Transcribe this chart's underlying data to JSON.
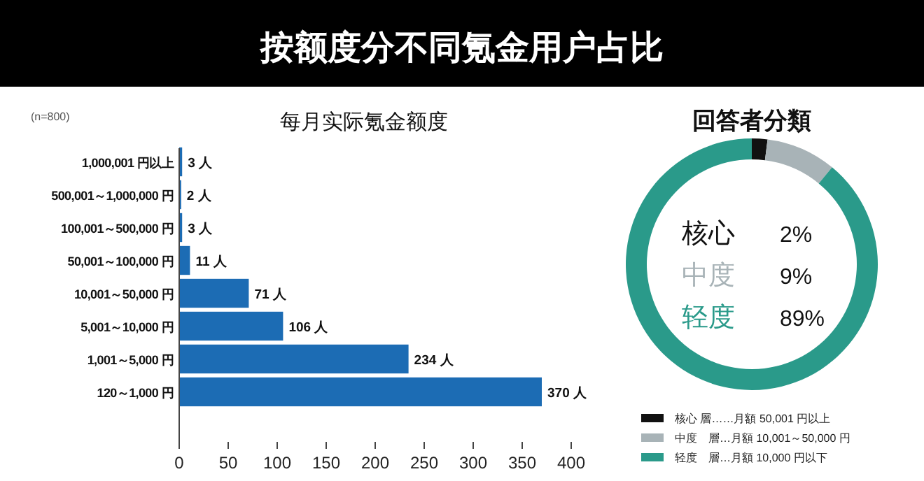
{
  "chart_data": [
    {
      "type": "bar",
      "orientation": "horizontal",
      "title": "按额度分不同氪金用户占比",
      "subtitle": "每月实际氪金额度",
      "categories": [
        "1,000,001 円以上",
        "500,001～1,000,000 円",
        "100,001～500,000 円",
        "50,001～100,000 円",
        "10,001～50,000 円",
        "5,001～10,000 円",
        "1,001～5,000 円",
        "120～1,000 円"
      ],
      "values": [
        3,
        2,
        3,
        11,
        71,
        106,
        234,
        370
      ],
      "value_labels": [
        "3 人",
        "2 人",
        "3 人",
        "11 人",
        "71 人",
        "106 人",
        "234 人",
        "370 人"
      ],
      "color": "#1c6cb4",
      "xlim": [
        0,
        400
      ],
      "xticks": [
        0,
        50,
        100,
        150,
        200,
        250,
        300,
        350,
        400
      ],
      "annotations": [
        "(n=800)"
      ]
    },
    {
      "type": "donut",
      "title": "回答者分類",
      "categories": [
        "核心 層……月額 50,001 円以上",
        "中度　層…月額 10,001～50,000 円",
        "轻度　層…月額 10,000 円以下"
      ],
      "values": [
        2,
        9,
        89
      ],
      "colors": [
        "#111111",
        "#a8b3b7",
        "#2a9a8a"
      ],
      "legend": "bottom",
      "annotations": [
        "核心",
        "2%",
        "中度",
        "9%",
        "轻度",
        "89%"
      ]
    }
  ]
}
